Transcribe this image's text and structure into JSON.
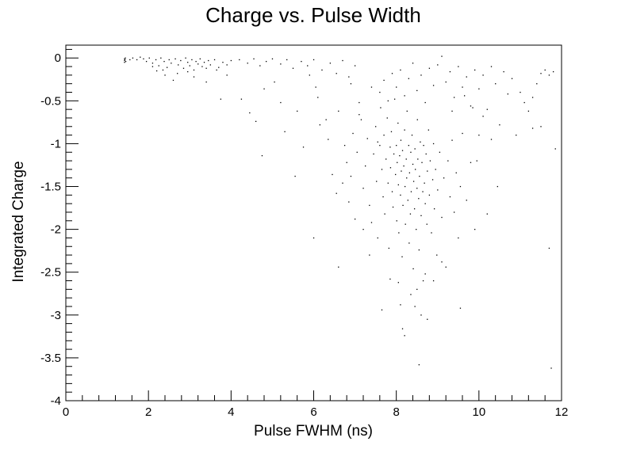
{
  "chart_data": {
    "type": "scatter",
    "title": "Charge vs. Pulse Width",
    "xlabel": "Pulse FWHM (ns)",
    "ylabel": "Integrated Charge",
    "xlim": [
      0,
      12
    ],
    "ylim": [
      -4,
      0.15
    ],
    "x_ticks": [
      0,
      2,
      4,
      6,
      8,
      10,
      12
    ],
    "x_tick_labels": [
      "0",
      "2",
      "4",
      "6",
      "8",
      "10",
      "12"
    ],
    "y_ticks": [
      0,
      -0.5,
      -1,
      -1.5,
      -2,
      -2.5,
      -3,
      -3.5,
      -4
    ],
    "y_tick_labels": [
      "0",
      "-0.5",
      "-1",
      "-1.5",
      "-2",
      "-2.5",
      "-3",
      "-3.5",
      "-4"
    ],
    "grid": false,
    "legend": "none",
    "marker_color": "#000000",
    "points": [
      [
        1.42,
        -0.01
      ],
      [
        1.42,
        -0.03
      ],
      [
        1.42,
        -0.05
      ],
      [
        1.43,
        -0.02
      ],
      [
        1.44,
        0.0
      ],
      [
        1.45,
        -0.04
      ],
      [
        1.55,
        -0.02
      ],
      [
        1.62,
        0.0
      ],
      [
        1.72,
        -0.02
      ],
      [
        1.8,
        0.01
      ],
      [
        1.88,
        -0.01
      ],
      [
        1.95,
        -0.04
      ],
      [
        2.02,
        0.0
      ],
      [
        2.1,
        -0.06
      ],
      [
        2.18,
        -0.02
      ],
      [
        2.25,
        -0.09
      ],
      [
        2.3,
        0.0
      ],
      [
        2.38,
        -0.04
      ],
      [
        2.45,
        -0.11
      ],
      [
        2.5,
        -0.02
      ],
      [
        2.55,
        -0.06
      ],
      [
        2.6,
        -0.26
      ],
      [
        2.65,
        -0.01
      ],
      [
        2.72,
        -0.08
      ],
      [
        2.78,
        -0.03
      ],
      [
        2.85,
        -0.12
      ],
      [
        2.9,
        0.0
      ],
      [
        2.95,
        -0.05
      ],
      [
        3.0,
        -0.09
      ],
      [
        3.05,
        -0.02
      ],
      [
        3.1,
        -0.14
      ],
      [
        3.15,
        -0.04
      ],
      [
        3.2,
        -0.07
      ],
      [
        3.25,
        -0.01
      ],
      [
        3.3,
        -0.1
      ],
      [
        3.35,
        -0.05
      ],
      [
        3.4,
        -0.12
      ],
      [
        3.45,
        -0.03
      ],
      [
        3.5,
        -0.08
      ],
      [
        3.6,
        -0.02
      ],
      [
        3.7,
        -0.11
      ],
      [
        3.8,
        -0.05
      ],
      [
        3.9,
        -0.08
      ],
      [
        4.0,
        -0.03
      ],
      [
        2.2,
        -0.15
      ],
      [
        2.4,
        -0.2
      ],
      [
        2.7,
        -0.18
      ],
      [
        3.1,
        -0.22
      ],
      [
        3.4,
        -0.28
      ],
      [
        3.9,
        -0.2
      ],
      [
        2.1,
        -0.1
      ],
      [
        2.35,
        -0.14
      ],
      [
        2.95,
        -0.16
      ],
      [
        3.65,
        -0.14
      ],
      [
        4.2,
        -0.02
      ],
      [
        4.4,
        -0.06
      ],
      [
        4.55,
        -0.01
      ],
      [
        4.7,
        -0.09
      ],
      [
        4.85,
        -0.04
      ],
      [
        5.0,
        -0.01
      ],
      [
        5.2,
        -0.07
      ],
      [
        5.35,
        -0.02
      ],
      [
        5.5,
        -0.12
      ],
      [
        5.7,
        -0.04
      ],
      [
        5.85,
        -0.09
      ],
      [
        6.0,
        -0.02
      ],
      [
        6.2,
        -0.14
      ],
      [
        6.4,
        -0.06
      ],
      [
        6.55,
        -0.18
      ],
      [
        6.7,
        -0.03
      ],
      [
        6.85,
        -0.22
      ],
      [
        7.0,
        -0.09
      ],
      [
        4.25,
        -0.48
      ],
      [
        4.45,
        -0.64
      ],
      [
        4.6,
        -0.74
      ],
      [
        4.75,
        -1.14
      ],
      [
        5.05,
        -0.28
      ],
      [
        5.2,
        -0.52
      ],
      [
        5.55,
        -1.38
      ],
      [
        5.75,
        -1.04
      ],
      [
        6.1,
        -0.46
      ],
      [
        6.15,
        -0.78
      ],
      [
        6.35,
        -0.95
      ],
      [
        6.45,
        -1.36
      ],
      [
        6.55,
        -1.58
      ],
      [
        6.6,
        -0.62
      ],
      [
        6.75,
        -1.02
      ],
      [
        6.8,
        -1.22
      ],
      [
        6.85,
        -1.68
      ],
      [
        6.9,
        -1.38
      ],
      [
        6.95,
        -0.88
      ],
      [
        7.0,
        -1.88
      ],
      [
        7.05,
        -1.1
      ],
      [
        7.1,
        -0.52
      ],
      [
        7.15,
        -0.72
      ],
      [
        7.2,
        -1.52
      ],
      [
        7.25,
        -1.26
      ],
      [
        7.3,
        -0.94
      ],
      [
        7.35,
        -1.72
      ],
      [
        7.4,
        -0.34
      ],
      [
        7.45,
        -1.12
      ],
      [
        7.5,
        -0.8
      ],
      [
        7.52,
        -1.44
      ],
      [
        7.55,
        -2.1
      ],
      [
        7.6,
        -1.02
      ],
      [
        7.62,
        -0.58
      ],
      [
        7.65,
        -1.3
      ],
      [
        7.68,
        -1.62
      ],
      [
        7.7,
        -0.9
      ],
      [
        7.72,
        -1.82
      ],
      [
        7.75,
        -1.18
      ],
      [
        7.78,
        -0.7
      ],
      [
        7.8,
        -1.46
      ],
      [
        7.82,
        -2.22
      ],
      [
        7.85,
        -1.04
      ],
      [
        7.86,
        -1.28
      ],
      [
        7.88,
        -0.86
      ],
      [
        7.9,
        -1.56
      ],
      [
        7.92,
        -1.74
      ],
      [
        7.94,
        -1.12
      ],
      [
        7.96,
        -0.48
      ],
      [
        7.98,
        -1.36
      ],
      [
        8.0,
        -1.02
      ],
      [
        8.01,
        -1.9
      ],
      [
        8.02,
        -1.22
      ],
      [
        8.04,
        -0.76
      ],
      [
        8.05,
        -1.48
      ],
      [
        8.06,
        -2.04
      ],
      [
        8.08,
        -1.14
      ],
      [
        8.1,
        -1.6
      ],
      [
        8.11,
        -0.96
      ],
      [
        8.12,
        -1.32
      ],
      [
        8.14,
        -2.32
      ],
      [
        8.15,
        -1.08
      ],
      [
        8.16,
        -1.72
      ],
      [
        8.18,
        -1.26
      ],
      [
        8.2,
        -0.84
      ],
      [
        8.21,
        -1.5
      ],
      [
        8.22,
        -1.94
      ],
      [
        8.24,
        -1.18
      ],
      [
        8.25,
        -1.4
      ],
      [
        8.26,
        -0.62
      ],
      [
        8.28,
        -1.66
      ],
      [
        8.3,
        -1.02
      ],
      [
        8.31,
        -2.16
      ],
      [
        8.32,
        -1.34
      ],
      [
        8.34,
        -1.82
      ],
      [
        8.35,
        -1.1
      ],
      [
        8.36,
        -1.56
      ],
      [
        8.38,
        -0.9
      ],
      [
        8.4,
        -1.24
      ],
      [
        8.41,
        -2.46
      ],
      [
        8.42,
        -1.44
      ],
      [
        8.44,
        -1.76
      ],
      [
        8.45,
        -1.06
      ],
      [
        8.46,
        -1.3
      ],
      [
        8.48,
        -2.0
      ],
      [
        8.5,
        -1.52
      ],
      [
        8.51,
        -0.72
      ],
      [
        8.52,
        -1.18
      ],
      [
        8.54,
        -1.64
      ],
      [
        8.55,
        -2.24
      ],
      [
        8.56,
        -1.38
      ],
      [
        8.58,
        -0.98
      ],
      [
        8.6,
        -1.84
      ],
      [
        8.62,
        -1.22
      ],
      [
        8.64,
        -1.56
      ],
      [
        8.65,
        -2.6
      ],
      [
        8.66,
        -1.02
      ],
      [
        8.68,
        -1.46
      ],
      [
        8.7,
        -1.7
      ],
      [
        8.72,
        -1.12
      ],
      [
        8.74,
        -1.94
      ],
      [
        8.75,
        -1.32
      ],
      [
        8.78,
        -0.84
      ],
      [
        8.8,
        -1.6
      ],
      [
        8.82,
        -1.2
      ],
      [
        8.85,
        -2.04
      ],
      [
        8.88,
        -1.42
      ],
      [
        8.9,
        -1.0
      ],
      [
        8.92,
        -1.76
      ],
      [
        8.95,
        -1.3
      ],
      [
        8.98,
        -2.3
      ],
      [
        9.0,
        -1.54
      ],
      [
        9.05,
        -1.1
      ],
      [
        9.1,
        -1.86
      ],
      [
        9.15,
        -1.4
      ],
      [
        9.2,
        -2.44
      ],
      [
        9.25,
        -1.2
      ],
      [
        9.3,
        -1.62
      ],
      [
        9.35,
        -0.96
      ],
      [
        9.4,
        -1.8
      ],
      [
        9.45,
        -1.34
      ],
      [
        9.5,
        -2.1
      ],
      [
        9.55,
        -1.5
      ],
      [
        9.6,
        -0.88
      ],
      [
        9.7,
        -1.66
      ],
      [
        9.8,
        -1.22
      ],
      [
        9.9,
        -2.0
      ],
      [
        10.0,
        -0.9
      ],
      [
        7.6,
        -0.4
      ],
      [
        7.7,
        -0.26
      ],
      [
        7.8,
        -0.5
      ],
      [
        7.9,
        -0.18
      ],
      [
        8.0,
        -0.34
      ],
      [
        8.1,
        -0.14
      ],
      [
        8.2,
        -0.44
      ],
      [
        8.3,
        -0.24
      ],
      [
        8.4,
        -0.06
      ],
      [
        8.5,
        -0.38
      ],
      [
        8.6,
        -0.2
      ],
      [
        8.7,
        -0.52
      ],
      [
        8.8,
        -0.12
      ],
      [
        8.9,
        -0.32
      ],
      [
        9.0,
        -0.08
      ],
      [
        9.1,
        0.02
      ],
      [
        9.2,
        -0.28
      ],
      [
        9.3,
        -0.16
      ],
      [
        9.4,
        -0.46
      ],
      [
        9.5,
        -0.1
      ],
      [
        9.6,
        -0.34
      ],
      [
        9.7,
        -0.22
      ],
      [
        9.8,
        -0.56
      ],
      [
        9.9,
        -0.14
      ],
      [
        10.0,
        -0.36
      ],
      [
        10.1,
        -0.2
      ],
      [
        10.2,
        -0.6
      ],
      [
        10.3,
        -0.1
      ],
      [
        10.4,
        -0.3
      ],
      [
        10.5,
        -0.78
      ],
      [
        10.6,
        -0.16
      ],
      [
        10.7,
        -0.42
      ],
      [
        10.8,
        -0.24
      ],
      [
        10.9,
        -0.9
      ],
      [
        11.0,
        -0.4
      ],
      [
        11.1,
        -0.52
      ],
      [
        11.2,
        -0.62
      ],
      [
        11.3,
        -0.82
      ],
      [
        11.4,
        -0.3
      ],
      [
        11.5,
        -0.18
      ],
      [
        11.6,
        -0.14
      ],
      [
        11.7,
        -0.2
      ],
      [
        11.8,
        -0.16
      ],
      [
        11.85,
        -1.06
      ],
      [
        11.7,
        -2.22
      ],
      [
        11.75,
        -3.62
      ],
      [
        11.5,
        -0.8
      ],
      [
        11.3,
        -0.46
      ],
      [
        10.3,
        -0.95
      ],
      [
        10.45,
        -1.5
      ],
      [
        10.2,
        -1.82
      ],
      [
        10.1,
        -0.68
      ],
      [
        9.95,
        -1.2
      ],
      [
        9.85,
        -0.58
      ],
      [
        9.65,
        -0.44
      ],
      [
        9.35,
        -0.62
      ],
      [
        8.05,
        -2.62
      ],
      [
        8.1,
        -2.88
      ],
      [
        8.15,
        -3.16
      ],
      [
        8.2,
        -3.24
      ],
      [
        8.35,
        -2.76
      ],
      [
        8.5,
        -2.7
      ],
      [
        8.6,
        -3.0
      ],
      [
        8.7,
        -2.52
      ],
      [
        8.75,
        -3.05
      ],
      [
        8.55,
        -3.58
      ],
      [
        9.55,
        -2.92
      ],
      [
        9.1,
        -2.38
      ],
      [
        7.85,
        -2.58
      ],
      [
        8.45,
        -2.9
      ],
      [
        8.9,
        -2.6
      ],
      [
        7.65,
        -2.94
      ],
      [
        6.0,
        -2.1
      ],
      [
        6.6,
        -2.44
      ],
      [
        7.2,
        -2.0
      ],
      [
        7.35,
        -2.3
      ],
      [
        5.9,
        -0.2
      ],
      [
        6.05,
        -0.34
      ],
      [
        5.6,
        -0.62
      ],
      [
        6.9,
        -0.3
      ],
      [
        3.75,
        -0.48
      ],
      [
        4.8,
        -0.36
      ],
      [
        5.3,
        -0.86
      ],
      [
        6.3,
        -0.72
      ],
      [
        7.1,
        -0.66
      ],
      [
        6.7,
        -1.46
      ],
      [
        7.4,
        -1.92
      ],
      [
        7.55,
        -0.98
      ]
    ]
  }
}
